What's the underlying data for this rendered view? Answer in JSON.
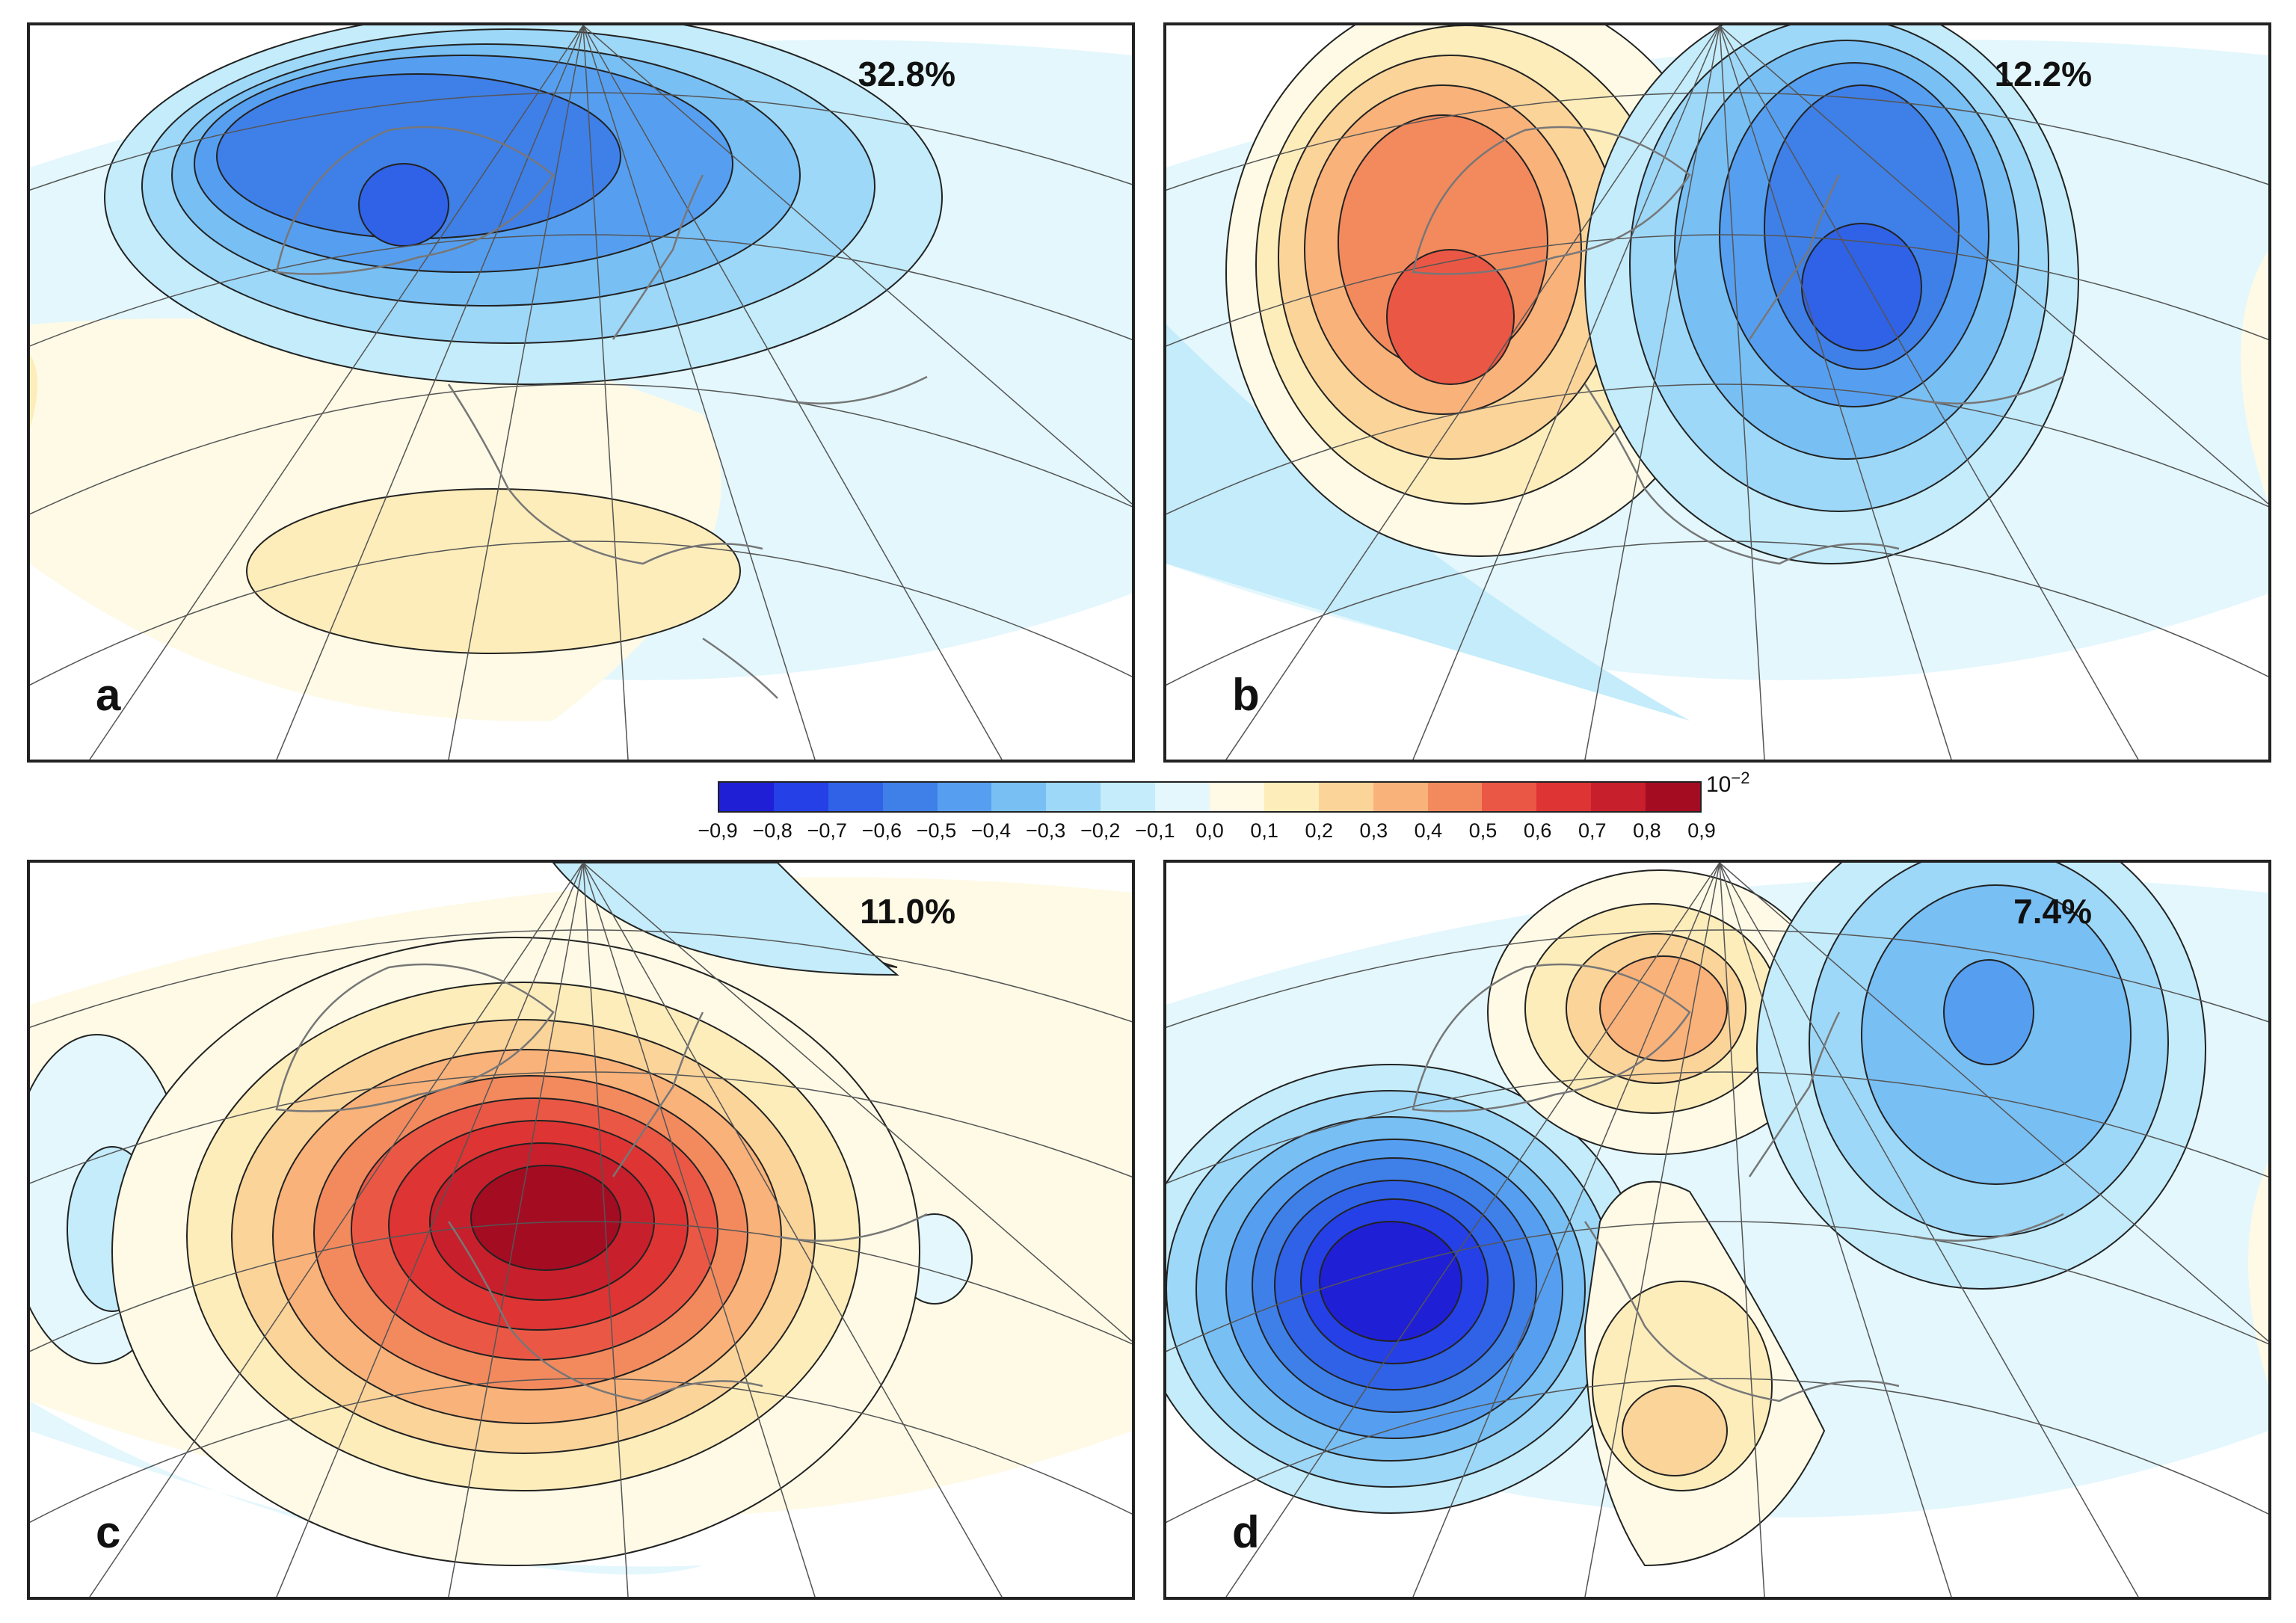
{
  "panels": [
    {
      "id": "a",
      "label": "a",
      "percent": "32.8%"
    },
    {
      "id": "b",
      "label": "b",
      "percent": "12.2%"
    },
    {
      "id": "c",
      "label": "c",
      "percent": "11.0%"
    },
    {
      "id": "d",
      "label": "d",
      "percent": "7.4%"
    }
  ],
  "colorbar": {
    "unit_base": "10",
    "unit_exponent": "−2",
    "ticks": [
      "−0,9",
      "−0,8",
      "−0,7",
      "−0,6",
      "−0,5",
      "−0,4",
      "−0,3",
      "−0,2",
      "−0,1",
      "0,0",
      "0,1",
      "0,2",
      "0,3",
      "0,4",
      "0,5",
      "0,6",
      "0,7",
      "0,8",
      "0,9"
    ],
    "colors": [
      "#1f1fd6",
      "#2440e6",
      "#2f62e6",
      "#3f7fe8",
      "#569ff0",
      "#78bff4",
      "#9ed8f8",
      "#c4ecfb",
      "#e3f7fd",
      "#fefae6",
      "#fdedbb",
      "#fbd49a",
      "#f8b27a",
      "#f28a5e",
      "#ea5845",
      "#de3434",
      "#c81f2c",
      "#a40c22"
    ]
  }
}
